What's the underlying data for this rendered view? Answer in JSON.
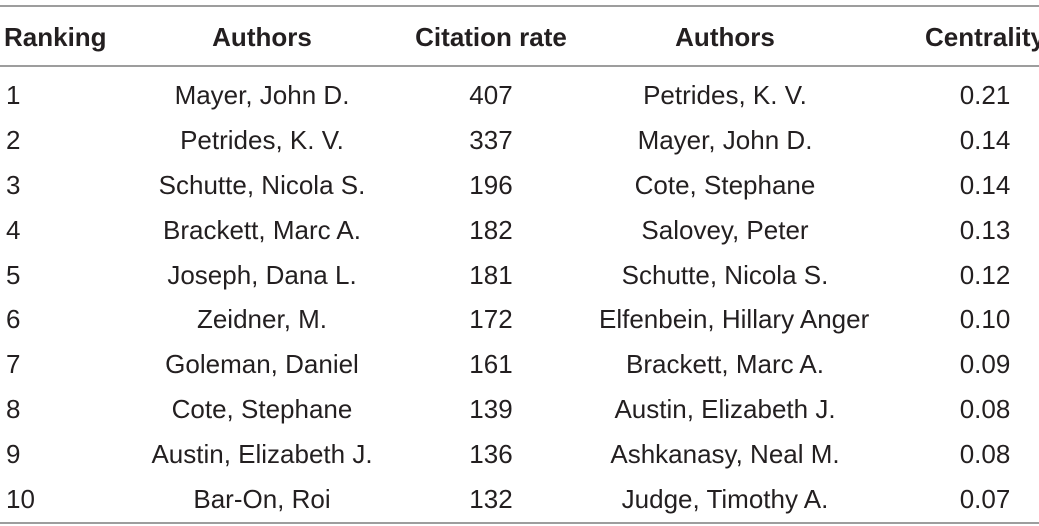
{
  "table": {
    "headers": {
      "ranking": "Ranking",
      "authors_citation": "Authors",
      "citation_rate": "Citation rate",
      "authors_centrality": "Authors",
      "centrality": "Centrality"
    },
    "rows": [
      {
        "ranking": "1",
        "author_a": "Mayer, John D.",
        "citation_rate": "407",
        "author_b": "Petrides, K. V.",
        "centrality": "0.21"
      },
      {
        "ranking": "2",
        "author_a": "Petrides, K. V.",
        "citation_rate": "337",
        "author_b": "Mayer, John D.",
        "centrality": "0.14"
      },
      {
        "ranking": "3",
        "author_a": "Schutte, Nicola S.",
        "citation_rate": "196",
        "author_b": "Cote, Stephane",
        "centrality": "0.14"
      },
      {
        "ranking": "4",
        "author_a": "Brackett, Marc A.",
        "citation_rate": "182",
        "author_b": "Salovey, Peter",
        "centrality": "0.13"
      },
      {
        "ranking": "5",
        "author_a": "Joseph, Dana L.",
        "citation_rate": "181",
        "author_b": "Schutte, Nicola S.",
        "centrality": "0.12"
      },
      {
        "ranking": "6",
        "author_a": "Zeidner, M.",
        "citation_rate": "172",
        "author_b": "Elfenbein, Hillary Anger",
        "centrality": "0.10"
      },
      {
        "ranking": "7",
        "author_a": "Goleman, Daniel",
        "citation_rate": "161",
        "author_b": "Brackett, Marc A.",
        "centrality": "0.09"
      },
      {
        "ranking": "8",
        "author_a": "Cote, Stephane",
        "citation_rate": "139",
        "author_b": "Austin, Elizabeth J.",
        "centrality": "0.08"
      },
      {
        "ranking": "9",
        "author_a": "Austin, Elizabeth J.",
        "citation_rate": "136",
        "author_b": "Ashkanasy, Neal M.",
        "centrality": "0.08"
      },
      {
        "ranking": "10",
        "author_a": "Bar-On, Roi",
        "citation_rate": "132",
        "author_b": "Judge, Timothy A.",
        "centrality": "0.07"
      }
    ]
  }
}
